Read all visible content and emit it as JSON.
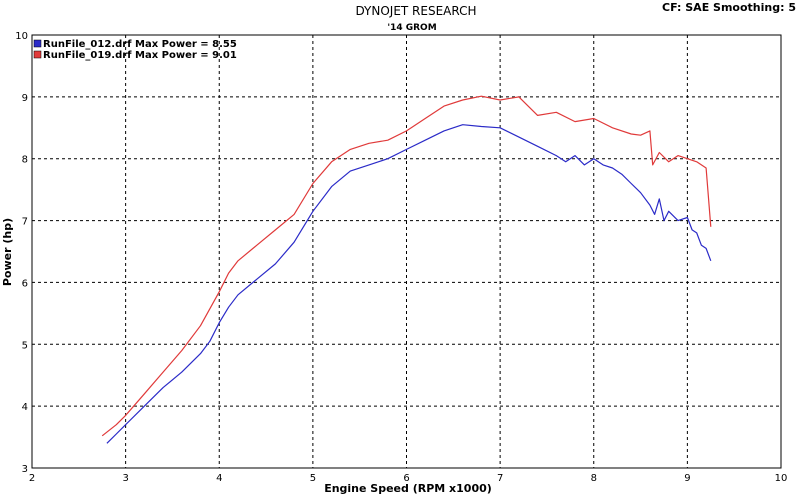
{
  "header": {
    "title": "DYNOJET RESEARCH",
    "subtitle": "'14 GROM",
    "settings": "CF: SAE  Smoothing: 5"
  },
  "chart_data": {
    "type": "line",
    "xlabel": "Engine Speed (RPM x1000)",
    "ylabel": "Power (hp)",
    "xlim": [
      2,
      10
    ],
    "ylim": [
      3,
      10
    ],
    "xticks": [
      "2",
      "3",
      "4",
      "5",
      "6",
      "7",
      "8",
      "9",
      "10"
    ],
    "yticks": [
      "3",
      "4",
      "5",
      "6",
      "7",
      "8",
      "9",
      "10"
    ],
    "grid": true,
    "legend_position": "top-left",
    "series": [
      {
        "name": "RunFile_012.drf Max Power = 8.55",
        "color": "#2b2bc8",
        "x": [
          2.8,
          2.9,
          3.0,
          3.2,
          3.4,
          3.6,
          3.8,
          3.9,
          4.0,
          4.1,
          4.2,
          4.4,
          4.6,
          4.8,
          5.0,
          5.2,
          5.4,
          5.6,
          5.8,
          6.0,
          6.2,
          6.4,
          6.6,
          6.8,
          7.0,
          7.2,
          7.4,
          7.6,
          7.7,
          7.8,
          7.9,
          8.0,
          8.1,
          8.2,
          8.3,
          8.4,
          8.5,
          8.6,
          8.65,
          8.7,
          8.75,
          8.8,
          8.9,
          9.0,
          9.05,
          9.1,
          9.15,
          9.2,
          9.25
        ],
        "values": [
          3.4,
          3.55,
          3.7,
          4.0,
          4.3,
          4.55,
          4.85,
          5.05,
          5.35,
          5.6,
          5.8,
          6.05,
          6.3,
          6.65,
          7.15,
          7.55,
          7.8,
          7.9,
          8.0,
          8.15,
          8.3,
          8.45,
          8.55,
          8.52,
          8.5,
          8.35,
          8.2,
          8.05,
          7.95,
          8.05,
          7.9,
          8.0,
          7.9,
          7.85,
          7.75,
          7.6,
          7.45,
          7.25,
          7.1,
          7.35,
          7.0,
          7.15,
          7.0,
          7.05,
          6.85,
          6.8,
          6.6,
          6.55,
          6.35
        ]
      },
      {
        "name": "RunFile_019.drf Max Power = 9.01",
        "color": "#e03a3a",
        "x": [
          2.75,
          2.9,
          3.0,
          3.2,
          3.4,
          3.6,
          3.8,
          4.0,
          4.1,
          4.2,
          4.4,
          4.6,
          4.8,
          5.0,
          5.2,
          5.4,
          5.6,
          5.8,
          6.0,
          6.2,
          6.4,
          6.6,
          6.8,
          7.0,
          7.2,
          7.4,
          7.6,
          7.8,
          8.0,
          8.2,
          8.4,
          8.5,
          8.6,
          8.63,
          8.7,
          8.8,
          8.9,
          9.0,
          9.1,
          9.15,
          9.2,
          9.25
        ],
        "values": [
          3.52,
          3.7,
          3.85,
          4.2,
          4.55,
          4.9,
          5.3,
          5.85,
          6.15,
          6.35,
          6.6,
          6.85,
          7.1,
          7.6,
          7.95,
          8.15,
          8.25,
          8.3,
          8.45,
          8.65,
          8.85,
          8.95,
          9.01,
          8.95,
          9.0,
          8.7,
          8.75,
          8.6,
          8.65,
          8.5,
          8.4,
          8.38,
          8.45,
          7.9,
          8.1,
          7.95,
          8.05,
          8.0,
          7.95,
          7.9,
          7.85,
          6.9
        ]
      }
    ]
  }
}
